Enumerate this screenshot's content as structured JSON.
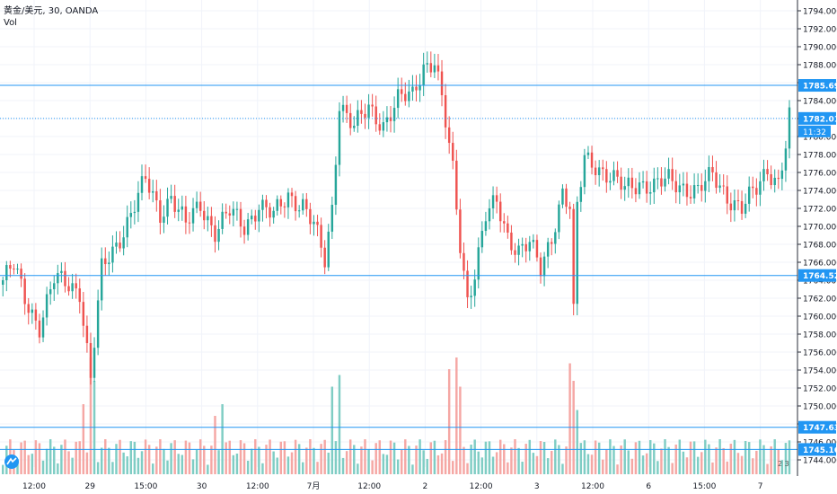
{
  "header": {
    "symbol_line": "黄金/美元, 30, OANDA",
    "volume_label": "Vol"
  },
  "price_axis": {
    "ticks": [
      "1794.000",
      "1792.000",
      "1790.000",
      "1788.000",
      "1786.000",
      "1784.000",
      "1782.000",
      "1780.000",
      "1778.000",
      "1776.000",
      "1774.000",
      "1772.000",
      "1770.000",
      "1768.000",
      "1766.000",
      "1764.000",
      "1762.000",
      "1760.000",
      "1758.000",
      "1756.000",
      "1754.000",
      "1752.000",
      "1750.000",
      "1748.000",
      "1746.000",
      "1744.000"
    ],
    "tick_values": [
      1794,
      1792,
      1790,
      1788,
      1786,
      1784,
      1782,
      1780,
      1778,
      1776,
      1774,
      1772,
      1770,
      1768,
      1766,
      1764,
      1762,
      1760,
      1758,
      1756,
      1754,
      1752,
      1750,
      1748,
      1746,
      1744
    ],
    "range": [
      1743.2,
      1795.2
    ]
  },
  "time_axis": {
    "labels": [
      "12:00",
      "29",
      "15:00",
      "30",
      "12:00",
      "7月",
      "12:00",
      "2",
      "12:00",
      "3",
      "12:00",
      "6",
      "15:00",
      "7"
    ]
  },
  "horizontal_lines": [
    {
      "value": 1785.696,
      "label": "1785.696",
      "style": "solid"
    },
    {
      "value": 1782.017,
      "label": "1782.017",
      "style": "dotted",
      "current": true
    },
    {
      "value": 1764.528,
      "label": "1764.528",
      "style": "solid"
    },
    {
      "value": 1747.63,
      "label": "1747.630",
      "style": "solid"
    },
    {
      "value": 1745.16,
      "label": "1745.160",
      "style": "solid"
    }
  ],
  "countdown": "11:32",
  "pane_buttons": "2 3",
  "colors": {
    "up": "#26a69a",
    "down": "#ef5350",
    "volume_up": "#7fcdc4",
    "volume_down": "#f5a7a4",
    "line": "#2196f3",
    "grid": "#f0f3fa",
    "axis_text": "#131722"
  },
  "chart_data": {
    "type": "candlestick",
    "title": "黄金/美元, 30, OANDA",
    "timeframe": "30",
    "x_labels": [
      "12:00",
      "29",
      "15:00",
      "30",
      "12:00",
      "7月",
      "12:00",
      "2",
      "12:00",
      "3",
      "12:00",
      "6",
      "15:00",
      "7"
    ],
    "ylim": [
      1743.2,
      1795.2
    ],
    "close_anchors": [
      {
        "i": 0,
        "price": 1764.0
      },
      {
        "i": 3,
        "price": 1765.5
      },
      {
        "i": 6,
        "price": 1762.0
      },
      {
        "i": 10,
        "price": 1759.0
      },
      {
        "i": 14,
        "price": 1764.0
      },
      {
        "i": 18,
        "price": 1763.5
      },
      {
        "i": 21,
        "price": 1763.0
      },
      {
        "i": 24,
        "price": 1753.0
      },
      {
        "i": 27,
        "price": 1765.0
      },
      {
        "i": 31,
        "price": 1768.0
      },
      {
        "i": 35,
        "price": 1771.5
      },
      {
        "i": 39,
        "price": 1775.0
      },
      {
        "i": 43,
        "price": 1771.5
      },
      {
        "i": 46,
        "price": 1773.5
      },
      {
        "i": 50,
        "price": 1770.0
      },
      {
        "i": 54,
        "price": 1772.5
      },
      {
        "i": 58,
        "price": 1769.5
      },
      {
        "i": 62,
        "price": 1771.5
      },
      {
        "i": 66,
        "price": 1770.0
      },
      {
        "i": 70,
        "price": 1772.5
      },
      {
        "i": 74,
        "price": 1771.0
      },
      {
        "i": 78,
        "price": 1773.5
      },
      {
        "i": 82,
        "price": 1772.5
      },
      {
        "i": 85,
        "price": 1770.0
      },
      {
        "i": 88,
        "price": 1766.0
      },
      {
        "i": 90,
        "price": 1772.0
      },
      {
        "i": 92,
        "price": 1784.0
      },
      {
        "i": 96,
        "price": 1781.0
      },
      {
        "i": 100,
        "price": 1783.0
      },
      {
        "i": 104,
        "price": 1781.5
      },
      {
        "i": 108,
        "price": 1784.0
      },
      {
        "i": 112,
        "price": 1784.5
      },
      {
        "i": 115,
        "price": 1788.0
      },
      {
        "i": 118,
        "price": 1788.5
      },
      {
        "i": 120,
        "price": 1784.0
      },
      {
        "i": 123,
        "price": 1776.0
      },
      {
        "i": 125,
        "price": 1768.0
      },
      {
        "i": 127,
        "price": 1762.0
      },
      {
        "i": 129,
        "price": 1765.0
      },
      {
        "i": 132,
        "price": 1771.0
      },
      {
        "i": 135,
        "price": 1772.5
      },
      {
        "i": 138,
        "price": 1769.0
      },
      {
        "i": 141,
        "price": 1767.5
      },
      {
        "i": 144,
        "price": 1768.0
      },
      {
        "i": 147,
        "price": 1765.0
      },
      {
        "i": 150,
        "price": 1769.0
      },
      {
        "i": 153,
        "price": 1774.0
      },
      {
        "i": 155,
        "price": 1772.0
      },
      {
        "i": 156,
        "price": 1760.0
      },
      {
        "i": 157,
        "price": 1772.0
      },
      {
        "i": 159,
        "price": 1777.5
      },
      {
        "i": 162,
        "price": 1777.0
      },
      {
        "i": 166,
        "price": 1775.5
      },
      {
        "i": 170,
        "price": 1774.0
      },
      {
        "i": 174,
        "price": 1775.0
      },
      {
        "i": 178,
        "price": 1774.5
      },
      {
        "i": 182,
        "price": 1775.0
      },
      {
        "i": 186,
        "price": 1774.5
      },
      {
        "i": 190,
        "price": 1774.0
      },
      {
        "i": 194,
        "price": 1775.5
      },
      {
        "i": 198,
        "price": 1773.5
      },
      {
        "i": 202,
        "price": 1772.0
      },
      {
        "i": 206,
        "price": 1774.0
      },
      {
        "i": 209,
        "price": 1776.5
      },
      {
        "i": 212,
        "price": 1775.0
      },
      {
        "i": 214,
        "price": 1779.0
      },
      {
        "i": 215,
        "price": 1782.0
      }
    ],
    "volume_peaks": [
      {
        "i": 24,
        "v": 1.0
      },
      {
        "i": 25,
        "v": 0.8
      },
      {
        "i": 22,
        "v": 0.6
      },
      {
        "i": 90,
        "v": 0.75
      },
      {
        "i": 92,
        "v": 0.85
      },
      {
        "i": 122,
        "v": 0.9
      },
      {
        "i": 124,
        "v": 1.0
      },
      {
        "i": 125,
        "v": 0.75
      },
      {
        "i": 155,
        "v": 0.95
      },
      {
        "i": 156,
        "v": 0.8
      },
      {
        "i": 157,
        "v": 0.55
      },
      {
        "i": 58,
        "v": 0.5
      },
      {
        "i": 60,
        "v": 0.6
      }
    ],
    "bar_count": 216
  }
}
